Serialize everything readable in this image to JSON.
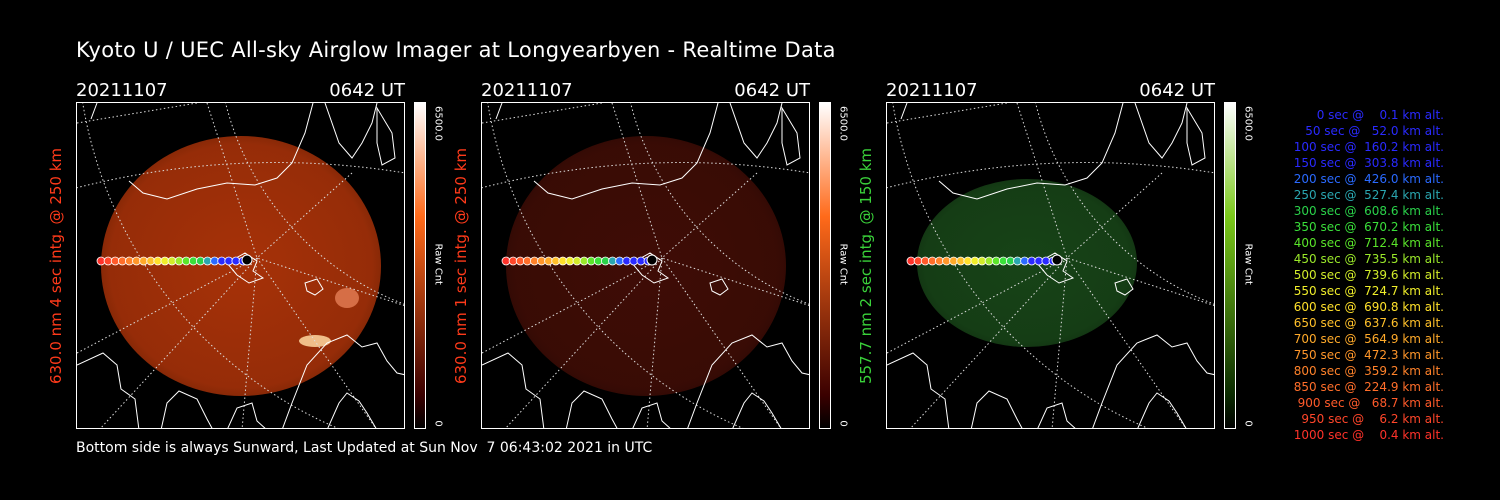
{
  "title": "Kyoto U / UEC All-sky Airglow Imager at Longyearbyen - Realtime Data",
  "footer": "Bottom side is always Sunward, Last Updated at Sun Nov  7 06:43:02 2021 in UTC",
  "panels": [
    {
      "date": "20211107",
      "time": "0642 UT",
      "wavelength_label": "630.0 nm 4 sec intg. @ 250 km",
      "label_color": "#ff3a1a",
      "cbar_max": "6500.0",
      "cbar_min": "0",
      "cbar_unit": "Raw Cnt",
      "cbar_top": "#ffffff",
      "cbar_mid": "#ff6a1a",
      "cbar_bot": "#3a0000",
      "glow_color": "#c43a0a",
      "glow_opacity": 0.85
    },
    {
      "date": "20211107",
      "time": "0642 UT",
      "wavelength_label": "630.0 nm 1 sec intg. @ 250 km",
      "label_color": "#ff3a1a",
      "cbar_max": "6500.0",
      "cbar_min": "0",
      "cbar_unit": "Raw Cnt",
      "cbar_top": "#ffffff",
      "cbar_mid": "#ff6a1a",
      "cbar_bot": "#3a0000",
      "glow_color": "#5a1208",
      "glow_opacity": 0.7
    },
    {
      "date": "20211107",
      "time": "0642 UT",
      "wavelength_label": "557.7 nm 2 sec intg. @ 150 km",
      "label_color": "#3ad23a",
      "cbar_max": "6500.0",
      "cbar_min": "0",
      "cbar_unit": "Raw Cnt",
      "cbar_top": "#ffffff",
      "cbar_mid": "#7ac81a",
      "cbar_bot": "#0a2a00",
      "glow_color": "#1f5a1f",
      "glow_opacity": 0.75
    }
  ],
  "legend": [
    {
      "text": "0 sec @    0.1 km alt.",
      "color": "#2a2aff"
    },
    {
      "text": "50 sec @   52.0 km alt.",
      "color": "#2a2aff"
    },
    {
      "text": "100 sec @  160.2 km alt.",
      "color": "#2a2aff"
    },
    {
      "text": "150 sec @  303.8 km alt.",
      "color": "#2a2aff"
    },
    {
      "text": "200 sec @  426.0 km alt.",
      "color": "#2a6aff"
    },
    {
      "text": "250 sec @  527.4 km alt.",
      "color": "#2aa6b0"
    },
    {
      "text": "300 sec @  608.6 km alt.",
      "color": "#2ad24a"
    },
    {
      "text": "350 sec @  670.2 km alt.",
      "color": "#3adf3a"
    },
    {
      "text": "400 sec @  712.4 km alt.",
      "color": "#5ae52a"
    },
    {
      "text": "450 sec @  735.5 km alt.",
      "color": "#9ae82a"
    },
    {
      "text": "500 sec @  739.6 km alt.",
      "color": "#d2ec2a"
    },
    {
      "text": "550 sec @  724.7 km alt.",
      "color": "#f0ee2a"
    },
    {
      "text": "600 sec @  690.8 km alt.",
      "color": "#ffe02a"
    },
    {
      "text": "650 sec @  637.6 km alt.",
      "color": "#ffc02a"
    },
    {
      "text": "700 sec @  564.9 km alt.",
      "color": "#ffaa2a"
    },
    {
      "text": "750 sec @  472.3 km alt.",
      "color": "#ff962a"
    },
    {
      "text": "800 sec @  359.2 km alt.",
      "color": "#ff822a"
    },
    {
      "text": "850 sec @  224.9 km alt.",
      "color": "#ff6e2a"
    },
    {
      "text": "900 sec @   68.7 km alt.",
      "color": "#ff5a2a"
    },
    {
      "text": "950 sec @    6.2 km alt.",
      "color": "#ff462a"
    },
    {
      "text": "1000 sec @    0.4 km alt.",
      "color": "#ff322a"
    }
  ]
}
